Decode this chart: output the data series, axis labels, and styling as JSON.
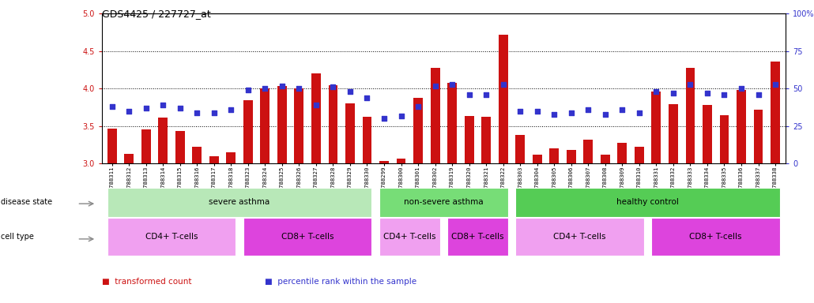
{
  "title": "GDS4425 / 227727_at",
  "samples": [
    "GSM788311",
    "GSM788312",
    "GSM788313",
    "GSM788314",
    "GSM788315",
    "GSM788316",
    "GSM788317",
    "GSM788318",
    "GSM788323",
    "GSM788324",
    "GSM788325",
    "GSM788326",
    "GSM788327",
    "GSM788328",
    "GSM788329",
    "GSM788330",
    "GSM788299",
    "GSM788300",
    "GSM788301",
    "GSM788302",
    "GSM788319",
    "GSM788320",
    "GSM788321",
    "GSM788322",
    "GSM788303",
    "GSM788304",
    "GSM788305",
    "GSM788306",
    "GSM788307",
    "GSM788308",
    "GSM788309",
    "GSM788310",
    "GSM788331",
    "GSM788332",
    "GSM788333",
    "GSM788334",
    "GSM788335",
    "GSM788336",
    "GSM788337",
    "GSM788338"
  ],
  "bar_values": [
    3.47,
    3.13,
    3.46,
    3.61,
    3.44,
    3.22,
    3.1,
    3.15,
    3.85,
    4.0,
    4.03,
    4.0,
    4.2,
    4.05,
    3.8,
    3.62,
    3.04,
    3.07,
    3.88,
    4.28,
    4.08,
    3.63,
    3.62,
    4.72,
    3.38,
    3.12,
    3.2,
    3.18,
    3.32,
    3.12,
    3.28,
    3.22,
    3.96,
    3.79,
    4.28,
    3.78,
    3.65,
    3.98,
    3.72,
    4.36
  ],
  "dot_values": [
    38,
    35,
    37,
    39,
    37,
    34,
    34,
    36,
    49,
    50,
    52,
    50,
    39,
    51,
    48,
    44,
    30,
    32,
    38,
    52,
    53,
    46,
    46,
    53,
    35,
    35,
    33,
    34,
    36,
    33,
    36,
    34,
    48,
    47,
    53,
    47,
    46,
    50,
    46,
    53
  ],
  "bar_color": "#cc1111",
  "dot_color": "#3333cc",
  "ylim_left": [
    3.0,
    5.0
  ],
  "ylim_right": [
    0,
    100
  ],
  "yticks_left": [
    3.0,
    3.5,
    4.0,
    4.5,
    5.0
  ],
  "yticks_right": [
    0,
    25,
    50,
    75,
    100
  ],
  "ytick_labels_right": [
    "0",
    "25",
    "50",
    "75",
    "100%"
  ],
  "grid_values": [
    3.5,
    4.0,
    4.5
  ],
  "disease_state_groups": [
    {
      "label": "severe asthma",
      "start": 0,
      "end": 16,
      "color": "#b8e8b8"
    },
    {
      "label": "non-severe asthma",
      "start": 16,
      "end": 24,
      "color": "#77dd77"
    },
    {
      "label": "healthy control",
      "start": 24,
      "end": 40,
      "color": "#55cc55"
    }
  ],
  "cell_type_groups": [
    {
      "label": "CD4+ T-cells",
      "start": 0,
      "end": 8,
      "color": "#f0a0f0"
    },
    {
      "label": "CD8+ T-cells",
      "start": 8,
      "end": 16,
      "color": "#dd44dd"
    },
    {
      "label": "CD4+ T-cells",
      "start": 16,
      "end": 20,
      "color": "#f0a0f0"
    },
    {
      "label": "CD8+ T-cells",
      "start": 20,
      "end": 24,
      "color": "#dd44dd"
    },
    {
      "label": "CD4+ T-cells",
      "start": 24,
      "end": 32,
      "color": "#f0a0f0"
    },
    {
      "label": "CD8+ T-cells",
      "start": 32,
      "end": 40,
      "color": "#dd44dd"
    }
  ],
  "ds_label": "disease state",
  "ct_label": "cell type",
  "legend_items": [
    {
      "label": "transformed count",
      "color": "#cc1111"
    },
    {
      "label": "percentile rank within the sample",
      "color": "#3333cc"
    }
  ],
  "bar_bottom": 3.0
}
